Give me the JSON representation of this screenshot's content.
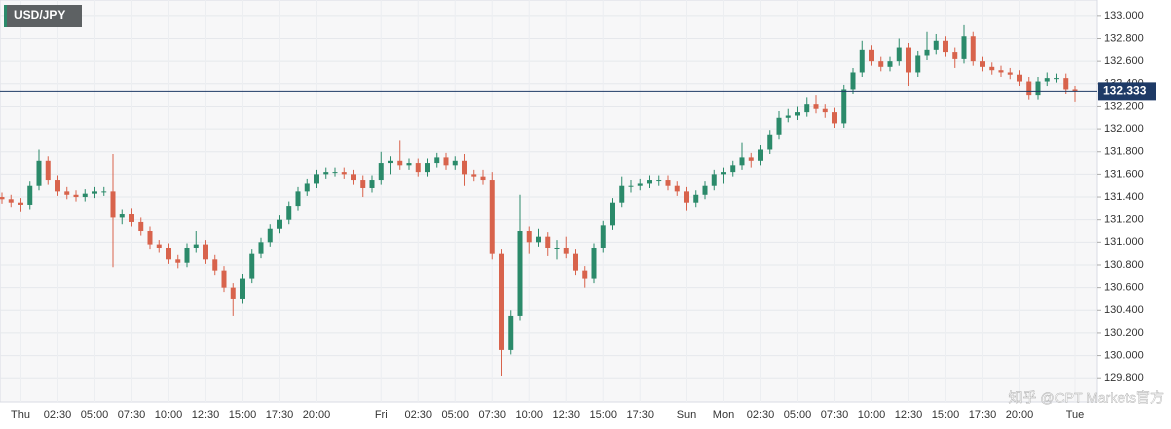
{
  "chart_data": {
    "type": "candlestick",
    "title": "USD/JPY",
    "watermark": "知乎 @CPT Markets官方",
    "up_color": "#2b8a6a",
    "down_color": "#d8634c",
    "grid": true,
    "ylim": [
      129.59,
      133.14
    ],
    "yticks": [
      {
        "value": 129.8,
        "label": "129.800"
      },
      {
        "value": 130.0,
        "label": "130.000"
      },
      {
        "value": 130.2,
        "label": "130.200"
      },
      {
        "value": 130.4,
        "label": "130.400"
      },
      {
        "value": 130.6,
        "label": "130.600"
      },
      {
        "value": 130.8,
        "label": "130.800"
      },
      {
        "value": 131.0,
        "label": "131.000"
      },
      {
        "value": 131.2,
        "label": "131.200"
      },
      {
        "value": 131.4,
        "label": "131.400"
      },
      {
        "value": 131.6,
        "label": "131.600"
      },
      {
        "value": 131.8,
        "label": "131.800"
      },
      {
        "value": 132.0,
        "label": "132.000"
      },
      {
        "value": 132.2,
        "label": "132.200"
      },
      {
        "value": 132.4,
        "label": "132.400"
      },
      {
        "value": 132.6,
        "label": "132.600"
      },
      {
        "value": 132.8,
        "label": "132.800"
      },
      {
        "value": 133.0,
        "label": "133.000"
      }
    ],
    "last_price": 132.333,
    "categories": [
      null,
      null,
      "Thu",
      null,
      null,
      null,
      "02:30",
      null,
      null,
      null,
      "05:00",
      null,
      null,
      null,
      "07:30",
      null,
      null,
      null,
      "10:00",
      null,
      null,
      null,
      "12:30",
      null,
      null,
      null,
      "15:00",
      null,
      null,
      null,
      "17:30",
      null,
      null,
      null,
      "20:00",
      null,
      null,
      null,
      null,
      null,
      null,
      "Fri",
      null,
      null,
      null,
      "02:30",
      null,
      null,
      null,
      "05:00",
      null,
      null,
      null,
      "07:30",
      null,
      null,
      null,
      "10:00",
      null,
      null,
      null,
      "12:30",
      null,
      null,
      null,
      "15:00",
      null,
      null,
      null,
      "17:30",
      null,
      null,
      null,
      null,
      "Sun",
      null,
      null,
      null,
      "Mon",
      null,
      null,
      null,
      "02:30",
      null,
      null,
      null,
      "05:00",
      null,
      null,
      null,
      "07:30",
      null,
      null,
      null,
      "10:00",
      null,
      null,
      null,
      "12:30",
      null,
      null,
      null,
      "15:00",
      null,
      null,
      null,
      "17:30",
      null,
      null,
      null,
      "20:00",
      null,
      null,
      null,
      null,
      null,
      "Tue"
    ],
    "candles": [
      [
        131.4,
        131.44,
        131.34,
        131.38
      ],
      [
        131.38,
        131.42,
        131.31,
        131.35
      ],
      [
        131.35,
        131.39,
        131.27,
        131.33
      ],
      [
        131.33,
        131.54,
        131.29,
        131.5
      ],
      [
        131.5,
        131.82,
        131.46,
        131.72
      ],
      [
        131.72,
        131.76,
        131.51,
        131.55
      ],
      [
        131.55,
        131.59,
        131.41,
        131.45
      ],
      [
        131.45,
        131.49,
        131.38,
        131.42
      ],
      [
        131.42,
        131.46,
        131.36,
        131.4
      ],
      [
        131.4,
        131.47,
        131.36,
        131.43
      ],
      [
        131.43,
        131.49,
        131.39,
        131.45
      ],
      [
        131.45,
        131.49,
        131.41,
        131.45
      ],
      [
        131.45,
        131.78,
        130.78,
        131.22
      ],
      [
        131.22,
        131.29,
        131.16,
        131.25
      ],
      [
        131.25,
        131.3,
        131.14,
        131.18
      ],
      [
        131.18,
        131.22,
        131.06,
        131.1
      ],
      [
        131.1,
        131.14,
        130.94,
        130.98
      ],
      [
        130.98,
        131.02,
        130.91,
        130.95
      ],
      [
        130.95,
        130.99,
        130.81,
        130.85
      ],
      [
        130.85,
        130.89,
        130.77,
        130.82
      ],
      [
        130.82,
        130.99,
        130.78,
        130.95
      ],
      [
        130.95,
        131.1,
        130.91,
        130.98
      ],
      [
        130.98,
        131.02,
        130.81,
        130.85
      ],
      [
        130.85,
        130.89,
        130.71,
        130.75
      ],
      [
        130.75,
        130.79,
        130.56,
        130.6
      ],
      [
        130.6,
        130.64,
        130.35,
        130.5
      ],
      [
        130.5,
        130.72,
        130.46,
        130.68
      ],
      [
        130.68,
        130.94,
        130.64,
        130.9
      ],
      [
        130.9,
        131.04,
        130.86,
        131.0
      ],
      [
        131.0,
        131.16,
        130.96,
        131.12
      ],
      [
        131.12,
        131.24,
        131.08,
        131.2
      ],
      [
        131.2,
        131.36,
        131.16,
        131.32
      ],
      [
        131.32,
        131.49,
        131.28,
        131.45
      ],
      [
        131.45,
        131.56,
        131.41,
        131.52
      ],
      [
        131.52,
        131.64,
        131.48,
        131.6
      ],
      [
        131.6,
        131.66,
        131.56,
        131.62
      ],
      [
        131.62,
        131.66,
        131.58,
        131.62
      ],
      [
        131.62,
        131.66,
        131.56,
        131.6
      ],
      [
        131.6,
        131.64,
        131.51,
        131.55
      ],
      [
        131.55,
        131.59,
        131.4,
        131.48
      ],
      [
        131.48,
        131.59,
        131.44,
        131.55
      ],
      [
        131.55,
        131.8,
        131.51,
        131.7
      ],
      [
        131.7,
        131.76,
        131.6,
        131.72
      ],
      [
        131.72,
        131.9,
        131.64,
        131.68
      ],
      [
        131.68,
        131.74,
        131.64,
        131.7
      ],
      [
        131.7,
        131.74,
        131.58,
        131.62
      ],
      [
        131.62,
        131.74,
        131.58,
        131.7
      ],
      [
        131.7,
        131.79,
        131.66,
        131.75
      ],
      [
        131.75,
        131.79,
        131.64,
        131.68
      ],
      [
        131.68,
        131.76,
        131.64,
        131.72
      ],
      [
        131.72,
        131.78,
        131.5,
        131.6
      ],
      [
        131.6,
        131.64,
        131.54,
        131.58
      ],
      [
        131.58,
        131.64,
        131.51,
        131.55
      ],
      [
        131.55,
        131.62,
        130.85,
        130.9
      ],
      [
        130.9,
        130.94,
        129.82,
        130.05
      ],
      [
        130.05,
        130.4,
        130.01,
        130.35
      ],
      [
        130.35,
        131.42,
        130.31,
        131.1
      ],
      [
        131.1,
        131.14,
        130.9,
        131.0
      ],
      [
        131.0,
        131.12,
        130.96,
        131.05
      ],
      [
        131.05,
        131.09,
        130.88,
        130.95
      ],
      [
        130.95,
        131.02,
        130.85,
        130.95
      ],
      [
        130.95,
        131.05,
        130.86,
        130.9
      ],
      [
        130.9,
        130.94,
        130.71,
        130.75
      ],
      [
        130.75,
        130.79,
        130.6,
        130.68
      ],
      [
        130.68,
        130.99,
        130.64,
        130.95
      ],
      [
        130.95,
        131.19,
        130.91,
        131.15
      ],
      [
        131.15,
        131.39,
        131.11,
        131.35
      ],
      [
        131.35,
        131.58,
        131.31,
        131.5
      ],
      [
        131.5,
        131.55,
        131.44,
        131.5
      ],
      [
        131.5,
        131.56,
        131.46,
        131.52
      ],
      [
        131.52,
        131.59,
        131.48,
        131.55
      ],
      [
        131.55,
        131.59,
        131.5,
        131.55
      ],
      [
        131.55,
        131.59,
        131.46,
        131.5
      ],
      [
        131.5,
        131.54,
        131.41,
        131.45
      ],
      [
        131.45,
        131.49,
        131.28,
        131.35
      ],
      [
        131.35,
        131.46,
        131.31,
        131.42
      ],
      [
        131.42,
        131.54,
        131.38,
        131.5
      ],
      [
        131.5,
        131.64,
        131.46,
        131.6
      ],
      [
        131.6,
        131.66,
        131.52,
        131.62
      ],
      [
        131.62,
        131.72,
        131.58,
        131.68
      ],
      [
        131.68,
        131.88,
        131.64,
        131.75
      ],
      [
        131.75,
        131.79,
        131.66,
        131.72
      ],
      [
        131.72,
        131.86,
        131.68,
        131.82
      ],
      [
        131.82,
        131.99,
        131.78,
        131.95
      ],
      [
        131.95,
        132.16,
        131.91,
        132.1
      ],
      [
        132.1,
        132.18,
        132.06,
        132.12
      ],
      [
        132.12,
        132.2,
        132.08,
        132.15
      ],
      [
        132.15,
        132.28,
        132.11,
        132.22
      ],
      [
        132.22,
        132.3,
        132.14,
        132.18
      ],
      [
        132.18,
        132.22,
        132.1,
        132.15
      ],
      [
        132.15,
        132.19,
        132.01,
        132.05
      ],
      [
        132.05,
        132.39,
        132.01,
        132.35
      ],
      [
        132.35,
        132.54,
        132.31,
        132.5
      ],
      [
        132.5,
        132.78,
        132.46,
        132.7
      ],
      [
        132.7,
        132.74,
        132.56,
        132.6
      ],
      [
        132.6,
        132.64,
        132.51,
        132.55
      ],
      [
        132.55,
        132.64,
        132.51,
        132.6
      ],
      [
        132.6,
        132.8,
        132.56,
        132.72
      ],
      [
        132.72,
        132.76,
        132.38,
        132.5
      ],
      [
        132.5,
        132.69,
        132.46,
        132.65
      ],
      [
        132.65,
        132.86,
        132.61,
        132.7
      ],
      [
        132.7,
        132.84,
        132.66,
        132.78
      ],
      [
        132.78,
        132.82,
        132.64,
        132.68
      ],
      [
        132.68,
        132.72,
        132.54,
        132.62
      ],
      [
        132.62,
        132.92,
        132.58,
        132.82
      ],
      [
        132.82,
        132.86,
        132.56,
        132.6
      ],
      [
        132.6,
        132.64,
        132.51,
        132.55
      ],
      [
        132.55,
        132.59,
        132.48,
        132.52
      ],
      [
        132.52,
        132.56,
        132.46,
        132.5
      ],
      [
        132.5,
        132.54,
        132.44,
        132.48
      ],
      [
        132.48,
        132.52,
        132.38,
        132.42
      ],
      [
        132.42,
        132.46,
        132.26,
        132.3
      ],
      [
        132.3,
        132.46,
        132.26,
        132.42
      ],
      [
        132.42,
        132.5,
        132.38,
        132.45
      ],
      [
        132.45,
        132.49,
        132.41,
        132.45
      ],
      [
        132.45,
        132.49,
        132.31,
        132.35
      ],
      [
        132.35,
        132.38,
        132.24,
        132.333
      ]
    ]
  }
}
